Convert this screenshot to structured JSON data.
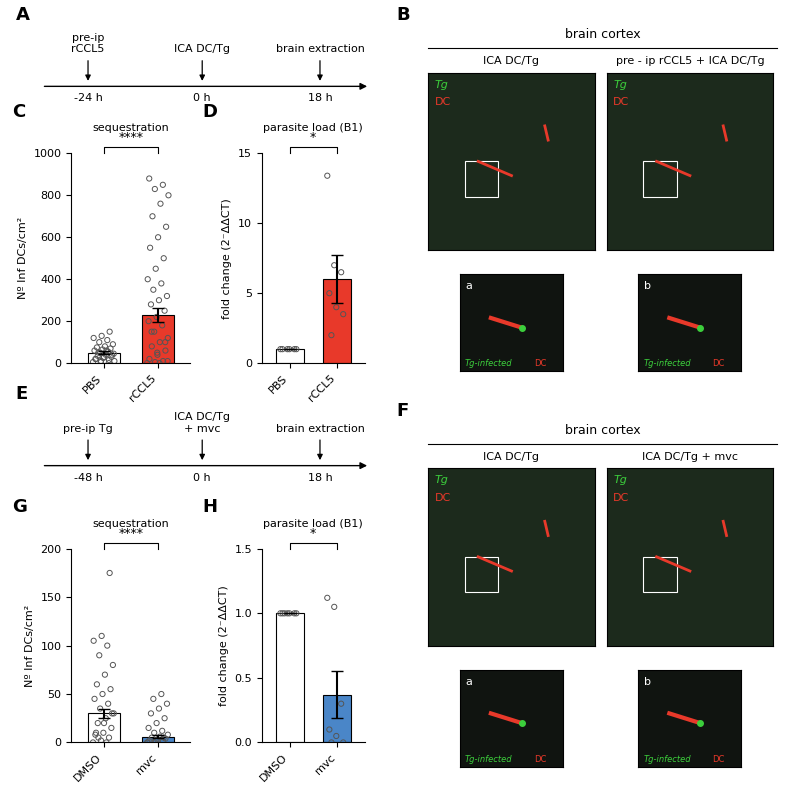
{
  "chart_data": [
    {
      "panel": "C",
      "type": "bar",
      "title": "sequestration",
      "ylabel": "Nº Inf DCs/cm²",
      "categories": [
        "PBS",
        "rCCL5"
      ],
      "values": [
        50,
        230
      ],
      "errors": [
        8,
        35
      ],
      "colors": [
        "#ffffff",
        "#e8392a"
      ],
      "points": [
        [
          5,
          10,
          15,
          20,
          25,
          30,
          35,
          40,
          45,
          50,
          55,
          60,
          65,
          70,
          75,
          80,
          90,
          100,
          110,
          120,
          130,
          150,
          20,
          30,
          40,
          50,
          60,
          10,
          5,
          0
        ],
        [
          0,
          5,
          10,
          20,
          40,
          60,
          80,
          100,
          120,
          150,
          180,
          200,
          220,
          250,
          280,
          300,
          320,
          350,
          380,
          400,
          450,
          500,
          550,
          600,
          650,
          700,
          760,
          800,
          830,
          850,
          880,
          50,
          100,
          150,
          0,
          10
        ]
      ],
      "significance": "****",
      "ylim": [
        0,
        1000
      ],
      "yticks": [
        0,
        200,
        400,
        600,
        800,
        1000
      ]
    },
    {
      "panel": "D",
      "type": "bar",
      "title": "parasite load (B1)",
      "ylabel": "fold change (2⁻ΔΔCT)",
      "categories": [
        "PBS",
        "rCCL5"
      ],
      "values": [
        1,
        6
      ],
      "errors": [
        0,
        1.7
      ],
      "colors": [
        "#ffffff",
        "#e8392a"
      ],
      "points": [
        [
          1,
          1,
          1,
          1,
          1,
          1
        ],
        [
          13.4,
          7,
          6.5,
          5,
          4,
          3.5,
          2
        ]
      ],
      "significance": "*",
      "ylim": [
        0,
        15
      ],
      "yticks": [
        0,
        5,
        10,
        15
      ]
    },
    {
      "panel": "G",
      "type": "bar",
      "title": "sequestration",
      "ylabel": "Nº Inf DCs/cm²",
      "categories": [
        "DMSO",
        "mvc"
      ],
      "values": [
        30,
        6
      ],
      "errors": [
        5,
        1.5
      ],
      "colors": [
        "#ffffff",
        "#4a86c8"
      ],
      "points": [
        [
          0,
          2,
          5,
          8,
          10,
          15,
          20,
          25,
          30,
          35,
          40,
          45,
          50,
          55,
          60,
          70,
          80,
          90,
          100,
          105,
          110,
          175,
          10,
          20,
          30,
          5,
          0
        ],
        [
          0,
          0,
          1,
          2,
          3,
          4,
          5,
          6,
          8,
          10,
          12,
          15,
          20,
          25,
          30,
          35,
          40,
          45,
          50,
          0,
          2,
          5
        ]
      ],
      "significance": "****",
      "ylim": [
        0,
        200
      ],
      "yticks": [
        0,
        50,
        100,
        150,
        200
      ]
    },
    {
      "panel": "H",
      "type": "bar",
      "title": "parasite load (B1)",
      "ylabel": "fold change (2⁻ΔΔCT)",
      "categories": [
        "DMSO",
        "mvc"
      ],
      "values": [
        1,
        0.37
      ],
      "errors": [
        0,
        0.18
      ],
      "colors": [
        "#ffffff",
        "#4a86c8"
      ],
      "points": [
        [
          1,
          1,
          1,
          1,
          1,
          1,
          1
        ],
        [
          1.12,
          1.05,
          0.3,
          0.1,
          0.05,
          0.0,
          0.0
        ]
      ],
      "significance": "*",
      "ylim": [
        0,
        1.5
      ],
      "yticks": [
        {
          "value": 0,
          "label": "0.0"
        },
        {
          "value": 0.5,
          "label": "0.5"
        },
        {
          "value": 1,
          "label": "1.0"
        },
        {
          "value": 1.5,
          "label": "1.5"
        }
      ]
    }
  ],
  "diagrams": [
    {
      "panel": "A",
      "events": [
        {
          "label": "pre-ip\nrCCL5",
          "time": "-24 h"
        },
        {
          "label": "ICA DC/Tg",
          "time": "0 h"
        },
        {
          "label": "brain extraction",
          "time": "18 h"
        }
      ]
    },
    {
      "panel": "E",
      "events": [
        {
          "label": "pre-ip Tg",
          "time": "-48 h"
        },
        {
          "label": "ICA DC/Tg\n+ mvc",
          "time": "0 h"
        },
        {
          "label": "brain extraction",
          "time": "18 h"
        }
      ]
    }
  ],
  "images": [
    {
      "panel": "B",
      "header": "brain cortex",
      "views": [
        {
          "title": "ICA DC/Tg",
          "inset": "a"
        },
        {
          "title": "pre - ip rCCL5 + ICA DC/Tg",
          "inset": "b"
        }
      ],
      "channels": [
        {
          "name": "Tg",
          "color": "#3ccf3c"
        },
        {
          "name": "DC",
          "color": "#e8392a"
        }
      ],
      "inset_caption": [
        "Tg-infected",
        "DC"
      ]
    },
    {
      "panel": "F",
      "header": "brain cortex",
      "views": [
        {
          "title": "ICA DC/Tg",
          "inset": "a"
        },
        {
          "title": "ICA DC/Tg + mvc",
          "inset": "b"
        }
      ],
      "channels": [
        {
          "name": "Tg",
          "color": "#3ccf3c"
        },
        {
          "name": "DC",
          "color": "#e8392a"
        }
      ],
      "inset_caption": [
        "Tg-infected",
        "DC"
      ]
    }
  ]
}
